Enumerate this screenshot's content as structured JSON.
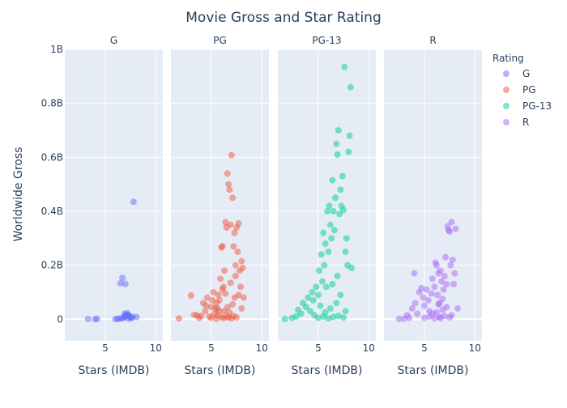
{
  "chart_data": {
    "type": "scatter",
    "title": "Movie Gross and Star Rating",
    "ylabel": "Worldwide Gross",
    "xlabel": "Stars (IMDB)",
    "ylim": [
      -80000000,
      1000000000
    ],
    "xlim": [
      1,
      10.7
    ],
    "y_ticks": [
      {
        "value": 0,
        "label": "0"
      },
      {
        "value": 200000000,
        "label": "0.2B"
      },
      {
        "value": 400000000,
        "label": "0.4B"
      },
      {
        "value": 600000000,
        "label": "0.6B"
      },
      {
        "value": 800000000,
        "label": "0.8B"
      },
      {
        "value": 1000000000,
        "label": "1B"
      }
    ],
    "x_ticks": [
      {
        "value": 5,
        "label": "5"
      },
      {
        "value": 10,
        "label": "10"
      }
    ],
    "grid": true,
    "legend": {
      "title": "Rating",
      "position": "right"
    },
    "series": [
      {
        "name": "G",
        "color": "#636efa",
        "points": [
          [
            3.3,
            1000000
          ],
          [
            4.0,
            500000
          ],
          [
            4.2,
            1500000
          ],
          [
            6.2,
            1000000
          ],
          [
            6.5,
            133000000
          ],
          [
            6.7,
            153000000
          ],
          [
            7.0,
            131000000
          ],
          [
            7.8,
            435000000
          ],
          [
            6.4,
            2000000
          ],
          [
            6.6,
            3000000
          ],
          [
            6.8,
            5000000
          ],
          [
            6.9,
            8000000
          ],
          [
            7.0,
            12000000
          ],
          [
            7.1,
            18000000
          ],
          [
            7.2,
            22000000
          ],
          [
            7.3,
            15000000
          ],
          [
            7.4,
            10000000
          ],
          [
            7.5,
            6000000
          ],
          [
            7.6,
            4000000
          ],
          [
            7.7,
            9000000
          ],
          [
            8.1,
            8000000
          ],
          [
            6.9,
            20000000
          ],
          [
            7.3,
            2000000
          ],
          [
            6.0,
            500000
          ]
        ]
      },
      {
        "name": "PG",
        "color": "#ef553b",
        "points": [
          [
            1.8,
            3000000
          ],
          [
            3.0,
            88000000
          ],
          [
            3.3,
            16000000
          ],
          [
            3.6,
            14000000
          ],
          [
            3.8,
            5000000
          ],
          [
            4.0,
            12000000
          ],
          [
            4.2,
            60000000
          ],
          [
            4.4,
            30000000
          ],
          [
            4.5,
            50000000
          ],
          [
            4.6,
            80000000
          ],
          [
            4.8,
            10000000
          ],
          [
            5.0,
            45000000
          ],
          [
            5.1,
            70000000
          ],
          [
            5.2,
            100000000
          ],
          [
            5.3,
            20000000
          ],
          [
            5.4,
            40000000
          ],
          [
            5.5,
            60000000
          ],
          [
            5.6,
            15000000
          ],
          [
            5.7,
            90000000
          ],
          [
            5.8,
            30000000
          ],
          [
            5.9,
            150000000
          ],
          [
            6.0,
            266000000
          ],
          [
            6.1,
            271000000
          ],
          [
            6.2,
            120000000
          ],
          [
            6.3,
            180000000
          ],
          [
            6.4,
            360000000
          ],
          [
            6.5,
            340000000
          ],
          [
            6.6,
            540000000
          ],
          [
            6.7,
            500000000
          ],
          [
            6.8,
            480000000
          ],
          [
            6.9,
            350000000
          ],
          [
            7.0,
            608000000
          ],
          [
            7.1,
            450000000
          ],
          [
            7.2,
            270000000
          ],
          [
            7.3,
            320000000
          ],
          [
            7.4,
            200000000
          ],
          [
            7.5,
            340000000
          ],
          [
            7.6,
            250000000
          ],
          [
            7.7,
            355000000
          ],
          [
            7.8,
            180000000
          ],
          [
            7.9,
            120000000
          ],
          [
            8.0,
            215000000
          ],
          [
            8.1,
            190000000
          ],
          [
            8.2,
            80000000
          ],
          [
            5.0,
            5000000
          ],
          [
            5.5,
            2000000
          ],
          [
            6.0,
            8000000
          ],
          [
            6.2,
            4000000
          ],
          [
            6.5,
            10000000
          ],
          [
            6.7,
            6000000
          ],
          [
            7.0,
            3000000
          ],
          [
            7.2,
            12000000
          ],
          [
            7.5,
            7000000
          ],
          [
            6.3,
            30000000
          ],
          [
            6.6,
            45000000
          ],
          [
            6.8,
            25000000
          ],
          [
            7.1,
            55000000
          ],
          [
            7.3,
            80000000
          ],
          [
            6.1,
            110000000
          ],
          [
            6.4,
            95000000
          ],
          [
            5.8,
            70000000
          ],
          [
            5.6,
            40000000
          ],
          [
            6.9,
            135000000
          ],
          [
            7.4,
            160000000
          ],
          [
            7.7,
            90000000
          ],
          [
            8.0,
            40000000
          ]
        ]
      },
      {
        "name": "PG-13",
        "color": "#00cc96",
        "points": [
          [
            1.7,
            1000000
          ],
          [
            2.4,
            5000000
          ],
          [
            2.8,
            10000000
          ],
          [
            3.0,
            35000000
          ],
          [
            3.3,
            20000000
          ],
          [
            3.5,
            60000000
          ],
          [
            3.8,
            45000000
          ],
          [
            4.0,
            80000000
          ],
          [
            4.2,
            30000000
          ],
          [
            4.4,
            100000000
          ],
          [
            4.5,
            70000000
          ],
          [
            4.6,
            15000000
          ],
          [
            4.8,
            120000000
          ],
          [
            5.0,
            90000000
          ],
          [
            5.1,
            180000000
          ],
          [
            5.2,
            50000000
          ],
          [
            5.3,
            240000000
          ],
          [
            5.4,
            140000000
          ],
          [
            5.5,
            320000000
          ],
          [
            5.6,
            200000000
          ],
          [
            5.7,
            280000000
          ],
          [
            5.8,
            120000000
          ],
          [
            5.9,
            400000000
          ],
          [
            6.0,
            250000000
          ],
          [
            6.1,
            420000000
          ],
          [
            6.2,
            350000000
          ],
          [
            6.3,
            300000000
          ],
          [
            6.4,
            515000000
          ],
          [
            6.5,
            400000000
          ],
          [
            6.6,
            330000000
          ],
          [
            6.7,
            450000000
          ],
          [
            6.8,
            650000000
          ],
          [
            6.9,
            610000000
          ],
          [
            7.0,
            700000000
          ],
          [
            7.1,
            390000000
          ],
          [
            7.2,
            480000000
          ],
          [
            7.3,
            420000000
          ],
          [
            7.4,
            530000000
          ],
          [
            7.5,
            405000000
          ],
          [
            7.6,
            935000000
          ],
          [
            7.7,
            250000000
          ],
          [
            7.8,
            300000000
          ],
          [
            7.9,
            200000000
          ],
          [
            8.0,
            620000000
          ],
          [
            8.1,
            680000000
          ],
          [
            8.2,
            860000000
          ],
          [
            8.3,
            190000000
          ],
          [
            5.0,
            5000000
          ],
          [
            5.5,
            10000000
          ],
          [
            6.0,
            3000000
          ],
          [
            6.5,
            8000000
          ],
          [
            7.0,
            12000000
          ],
          [
            7.5,
            6000000
          ],
          [
            6.2,
            40000000
          ],
          [
            6.8,
            60000000
          ],
          [
            7.2,
            90000000
          ],
          [
            6.4,
            130000000
          ],
          [
            6.9,
            160000000
          ],
          [
            5.7,
            25000000
          ],
          [
            7.7,
            30000000
          ]
        ]
      },
      {
        "name": "R",
        "color": "#ab63fa",
        "points": [
          [
            2.5,
            1000000
          ],
          [
            3.0,
            2000000
          ],
          [
            3.3,
            15000000
          ],
          [
            3.5,
            5000000
          ],
          [
            3.8,
            40000000
          ],
          [
            4.0,
            170000000
          ],
          [
            4.1,
            60000000
          ],
          [
            4.3,
            20000000
          ],
          [
            4.5,
            100000000
          ],
          [
            4.7,
            115000000
          ],
          [
            4.9,
            80000000
          ],
          [
            5.0,
            50000000
          ],
          [
            5.2,
            110000000
          ],
          [
            5.4,
            70000000
          ],
          [
            5.5,
            30000000
          ],
          [
            5.7,
            95000000
          ],
          [
            5.8,
            150000000
          ],
          [
            6.0,
            120000000
          ],
          [
            6.1,
            210000000
          ],
          [
            6.2,
            200000000
          ],
          [
            6.3,
            90000000
          ],
          [
            6.4,
            170000000
          ],
          [
            6.5,
            60000000
          ],
          [
            6.6,
            180000000
          ],
          [
            6.7,
            140000000
          ],
          [
            6.8,
            75000000
          ],
          [
            6.9,
            110000000
          ],
          [
            7.0,
            160000000
          ],
          [
            7.1,
            230000000
          ],
          [
            7.2,
            130000000
          ],
          [
            7.3,
            345000000
          ],
          [
            7.4,
            330000000
          ],
          [
            7.5,
            325000000
          ],
          [
            7.6,
            200000000
          ],
          [
            7.7,
            360000000
          ],
          [
            7.8,
            220000000
          ],
          [
            7.9,
            130000000
          ],
          [
            8.0,
            170000000
          ],
          [
            8.1,
            335000000
          ],
          [
            8.3,
            40000000
          ],
          [
            5.0,
            5000000
          ],
          [
            5.5,
            10000000
          ],
          [
            6.0,
            3000000
          ],
          [
            6.5,
            8000000
          ],
          [
            7.0,
            12000000
          ],
          [
            7.5,
            6000000
          ],
          [
            6.2,
            25000000
          ],
          [
            6.8,
            35000000
          ],
          [
            7.2,
            45000000
          ],
          [
            6.4,
            55000000
          ],
          [
            5.8,
            20000000
          ],
          [
            7.7,
            15000000
          ],
          [
            6.6,
            4000000
          ]
        ]
      }
    ]
  }
}
